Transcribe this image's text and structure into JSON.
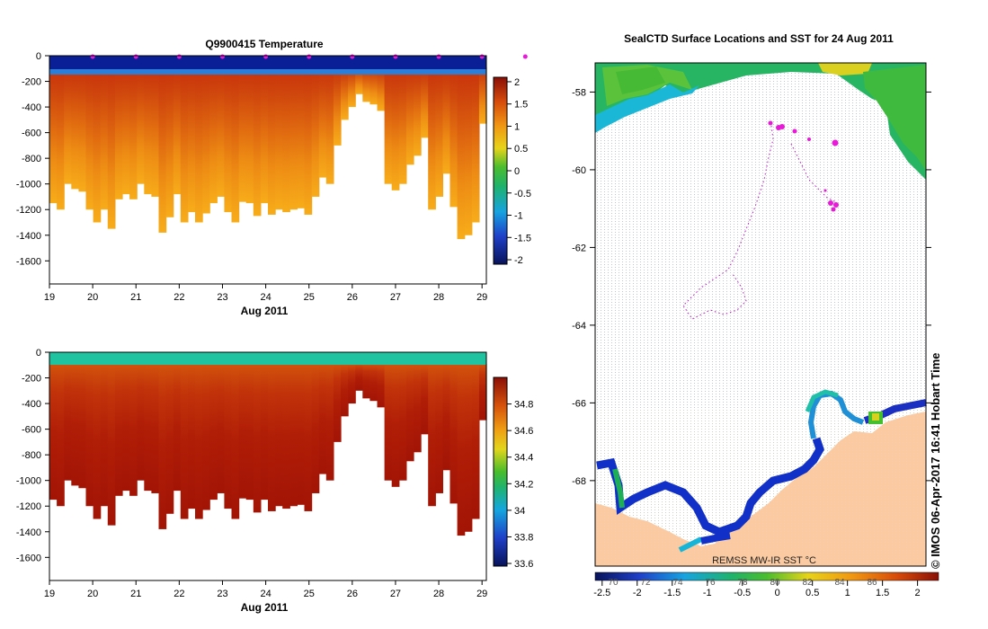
{
  "chart_data": [
    {
      "type": "heatmap",
      "title": "Q9900415  Temperature",
      "xlabel": "Aug 2011",
      "ylabel": "",
      "x_ticks": [
        "19",
        "20",
        "21",
        "22",
        "23",
        "24",
        "25",
        "26",
        "27",
        "28",
        "29"
      ],
      "y_ticks": [
        "0",
        "-200",
        "-400",
        "-600",
        "-800",
        "-1000",
        "-1200",
        "-1400",
        "-1600"
      ],
      "xlim": [
        19,
        29.1
      ],
      "ylim": [
        -1780,
        0
      ],
      "colorbar": {
        "ticks": [
          "2",
          "1.5",
          "1",
          "0.5",
          "0",
          "-0.5",
          "-1",
          "-1.5",
          "-2"
        ],
        "range": [
          -2.1,
          2.1
        ]
      },
      "surface_value": -1.8,
      "profile_depths_m": [
        -1150,
        -1200,
        -1000,
        -1040,
        -1060,
        -1200,
        -1300,
        -1200,
        -1350,
        -1120,
        -1080,
        -1120,
        -1000,
        -1080,
        -1100,
        -1380,
        -1260,
        -1080,
        -1300,
        -1220,
        -1300,
        -1230,
        -1150,
        -1100,
        -1220,
        -1300,
        -1140,
        -1150,
        -1250,
        -1150,
        -1240,
        -1200,
        -1220,
        -1200,
        -1190,
        -1240,
        -1100,
        -950,
        -1000,
        -700,
        -500,
        -400,
        -300,
        -360,
        -380,
        -430,
        -1000,
        -1050,
        -1000,
        -850,
        -780,
        -640,
        -1200,
        -1100,
        -920,
        -1180,
        -1430,
        -1400,
        -1300,
        -530
      ]
    },
    {
      "type": "heatmap",
      "title": "",
      "xlabel": "Aug 2011",
      "ylabel": "",
      "x_ticks": [
        "19",
        "20",
        "21",
        "22",
        "23",
        "24",
        "25",
        "26",
        "27",
        "28",
        "29"
      ],
      "y_ticks": [
        "0",
        "-200",
        "-400",
        "-600",
        "-800",
        "-1000",
        "-1200",
        "-1400",
        "-1600"
      ],
      "xlim": [
        19,
        29.1
      ],
      "ylim": [
        -1780,
        0
      ],
      "colorbar": {
        "ticks": [
          "34.8",
          "34.6",
          "34.4",
          "34.2",
          "34",
          "33.8",
          "33.6"
        ],
        "range": [
          33.58,
          35.0
        ]
      },
      "surface_value": 34.15,
      "profile_depths_m": [
        -1150,
        -1200,
        -1000,
        -1040,
        -1060,
        -1200,
        -1300,
        -1200,
        -1350,
        -1120,
        -1080,
        -1120,
        -1000,
        -1080,
        -1100,
        -1380,
        -1260,
        -1080,
        -1300,
        -1220,
        -1300,
        -1230,
        -1150,
        -1100,
        -1220,
        -1300,
        -1140,
        -1150,
        -1250,
        -1150,
        -1240,
        -1200,
        -1220,
        -1200,
        -1190,
        -1240,
        -1100,
        -950,
        -1000,
        -700,
        -500,
        -400,
        -300,
        -360,
        -380,
        -430,
        -1000,
        -1050,
        -1000,
        -850,
        -780,
        -640,
        -1200,
        -1100,
        -920,
        -1180,
        -1430,
        -1400,
        -1300,
        -530
      ]
    },
    {
      "type": "map",
      "title": "SealCTD Surface Locations and SST for 24 Aug 2011",
      "lat_ticks": [
        "-58",
        "-60",
        "-62",
        "-64",
        "-66",
        "-68"
      ],
      "colorbar_ticks": [
        "-2.5",
        "-2",
        "-1.5",
        "-1",
        "-0.5",
        "0",
        "0.5",
        "1",
        "1.5",
        "2"
      ],
      "faint_ticks": [
        "70",
        "72",
        "74",
        "76",
        "78",
        "80",
        "82",
        "84",
        "86"
      ],
      "colorbar_range": [
        -2.6,
        2.3
      ],
      "source_label": "REMSS MW-IR SST °C",
      "credit": "© IMOS 06-Apr-2017 16:41 Hobart Time"
    }
  ]
}
